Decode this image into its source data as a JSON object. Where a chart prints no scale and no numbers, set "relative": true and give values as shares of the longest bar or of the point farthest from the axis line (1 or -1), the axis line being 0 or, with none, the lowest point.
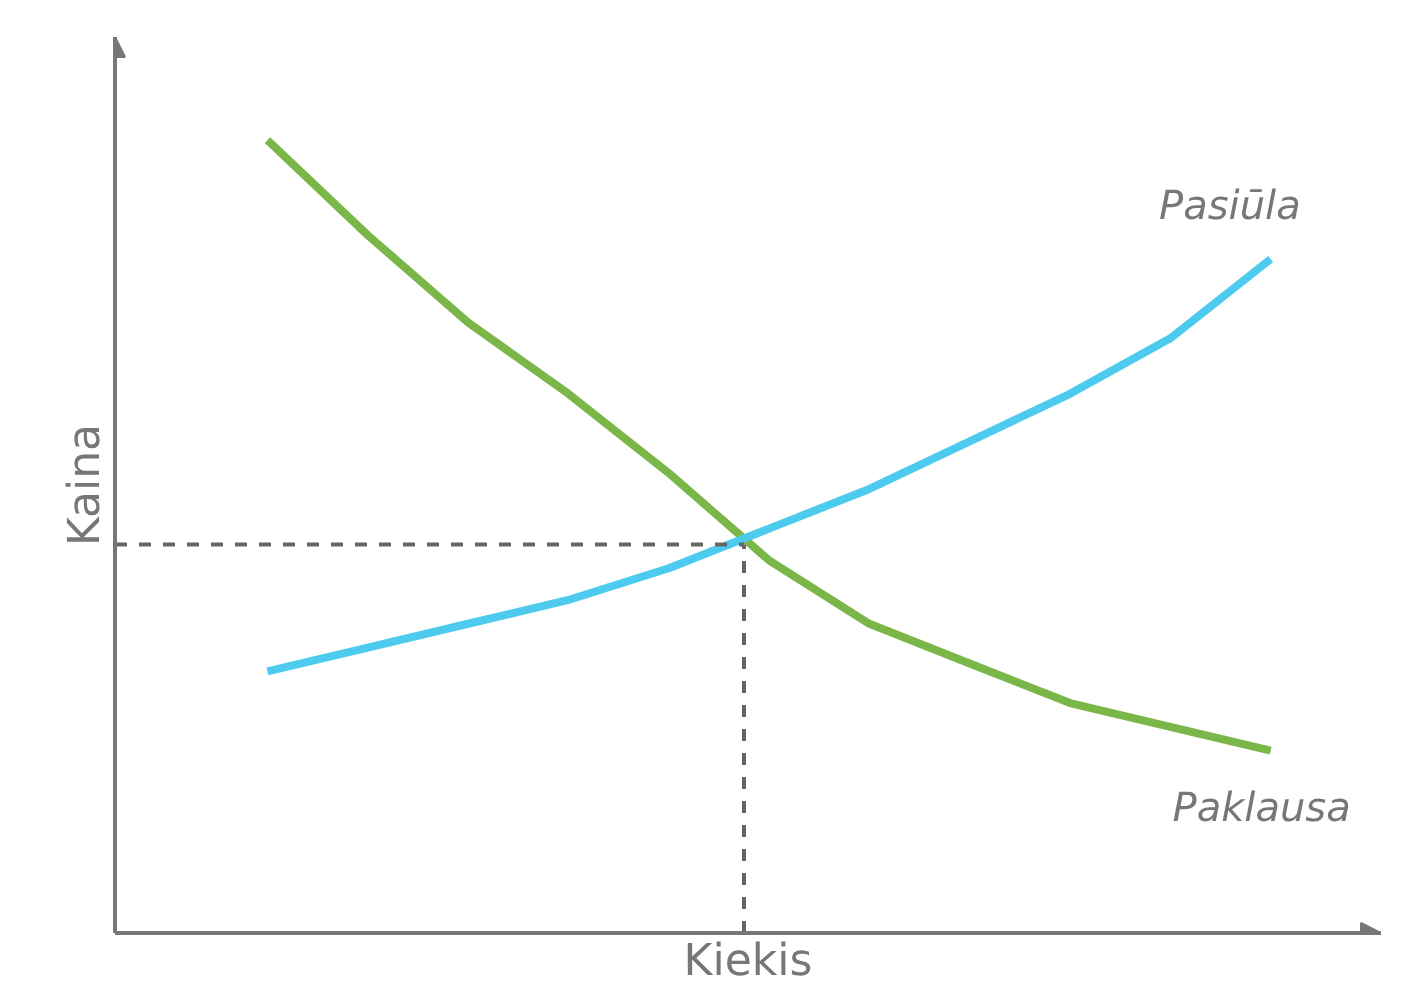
{
  "chart_data": {
    "type": "line",
    "relative": true,
    "xlabel": "Kiekis",
    "ylabel": "Kaina",
    "line_style": "solid",
    "categories": [
      null,
      null,
      null,
      null,
      null,
      null,
      null,
      null,
      null,
      null,
      null
    ],
    "series": [
      {
        "name": "Paklausa",
        "color": "#7ab648",
        "values": [
          1.0,
          0.88,
          0.77,
          0.68,
          0.58,
          0.47,
          0.39,
          0.34,
          0.29,
          0.26,
          0.23
        ]
      },
      {
        "name": "Pasiūla",
        "color": "#4dcbef",
        "values": [
          0.33,
          0.36,
          0.39,
          0.42,
          0.46,
          0.51,
          0.56,
          0.62,
          0.68,
          0.75,
          0.85
        ]
      }
    ],
    "ref_lines": [
      {
        "axis": "y",
        "value": 0.49,
        "color": "#666666",
        "line_style": "dashed"
      }
    ]
  }
}
